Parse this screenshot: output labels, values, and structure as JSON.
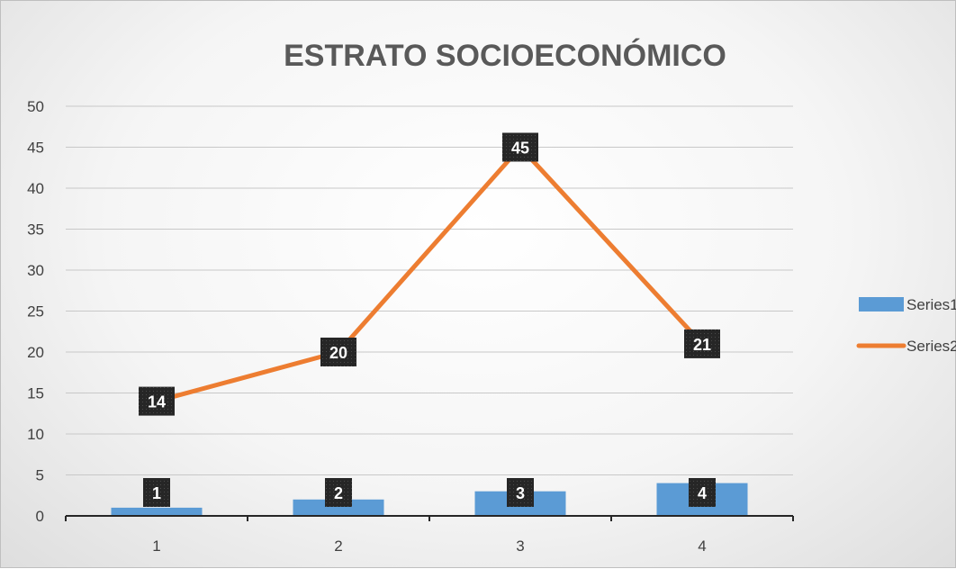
{
  "chart_data": {
    "type": "bar",
    "title": "ESTRATO SOCIOECONÓMICO",
    "categories": [
      "1",
      "2",
      "3",
      "4"
    ],
    "ylim": [
      0,
      50
    ],
    "yticks": [
      "0",
      "5",
      "10",
      "15",
      "20",
      "25",
      "30",
      "35",
      "40",
      "45",
      "50"
    ],
    "grid": true,
    "legend_position": "right",
    "series": [
      {
        "name": "Series1",
        "type": "bar",
        "color": "#5b9bd5",
        "values": [
          1,
          2,
          3,
          4
        ],
        "labels": [
          "1",
          "2",
          "3",
          "4"
        ]
      },
      {
        "name": "Series2",
        "type": "line",
        "color": "#ed7d31",
        "values": [
          14,
          20,
          45,
          21
        ],
        "labels": [
          "14",
          "20",
          "45",
          "21"
        ]
      }
    ],
    "data_label_style": {
      "background": "#262626",
      "text_color": "#ffffff"
    }
  }
}
